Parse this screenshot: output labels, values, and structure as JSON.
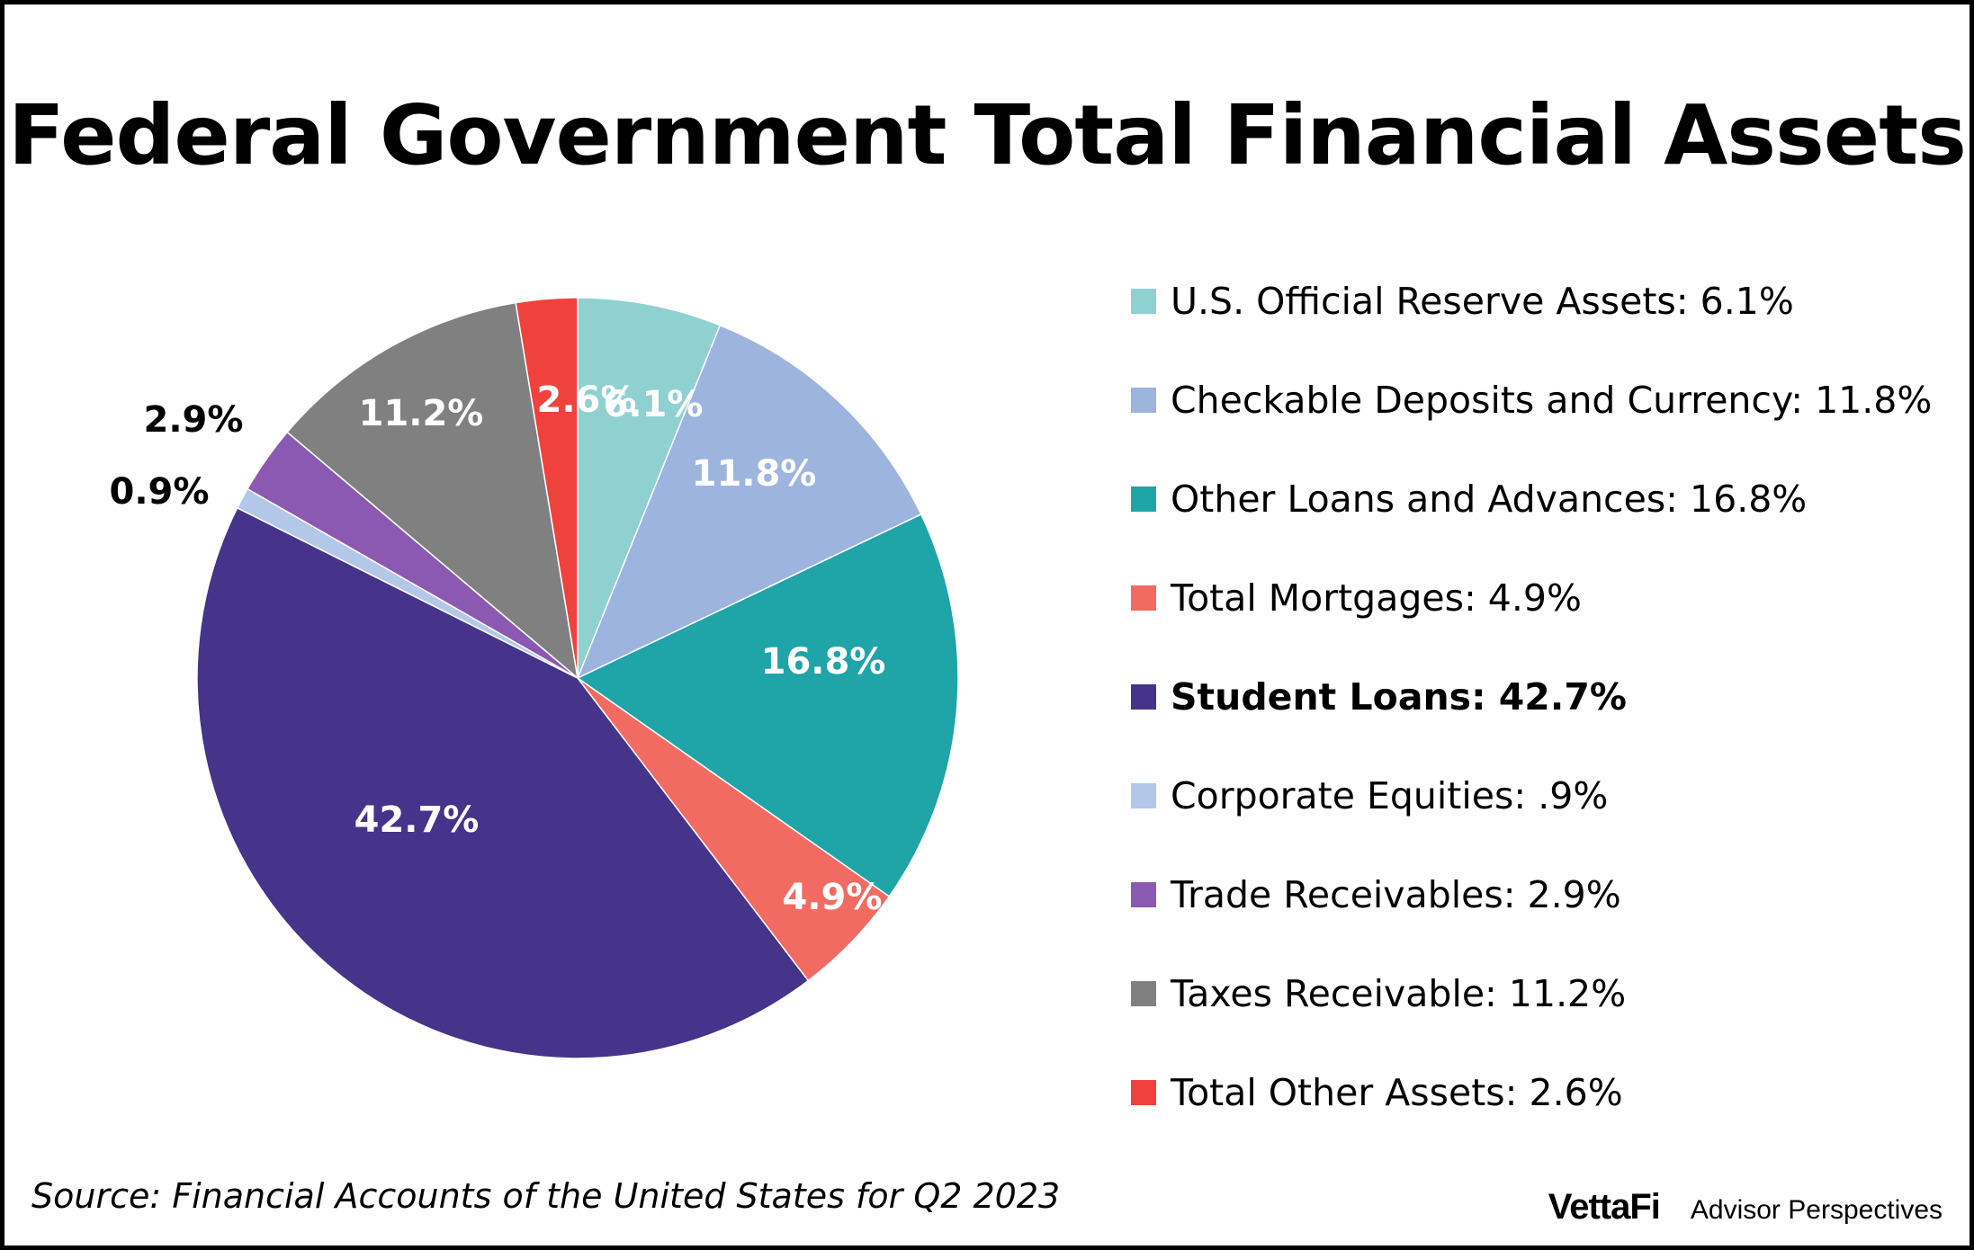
{
  "chart_data": {
    "type": "pie",
    "title": "Federal Government Total Financial Assets",
    "source": "Source: Financial Accounts of the United States for Q2 2023",
    "start_angle": "12 o'clock",
    "direction": "clockwise",
    "legend_position": "right",
    "slices": [
      {
        "name": "U.S. Official Reserve Assets",
        "value": 6.1,
        "label": "6.1%",
        "legend": "U.S. Official Reserve Assets: 6.1%",
        "color": "#8fd1d1"
      },
      {
        "name": "Checkable Deposits and Currency",
        "value": 11.8,
        "label": "11.8%",
        "legend": "Checkable Deposits and Currency: 11.8%",
        "color": "#9db5de"
      },
      {
        "name": "Other Loans and Advances",
        "value": 16.8,
        "label": "16.8%",
        "legend": "Other Loans and Advances: 16.8%",
        "color": "#1fa4a8"
      },
      {
        "name": "Total Mortgages",
        "value": 4.9,
        "label": "4.9%",
        "legend": "Total Mortgages: 4.9%",
        "color": "#f16b63"
      },
      {
        "name": "Student Loans",
        "value": 42.7,
        "label": "42.7%",
        "legend": "Student Loans: 42.7%",
        "color": "#46338a",
        "bold": true
      },
      {
        "name": "Corporate Equities",
        "value": 0.9,
        "label": "0.9%",
        "legend": "Corporate Equities: .9%",
        "color": "#b3c8e8"
      },
      {
        "name": "Trade Receivables",
        "value": 2.9,
        "label": "2.9%",
        "legend": "Trade Receivables: 2.9%",
        "color": "#8b59b1"
      },
      {
        "name": "Taxes Receivable",
        "value": 11.2,
        "label": "11.2%",
        "legend": "Taxes Receivable: 11.2%",
        "color": "#808080"
      },
      {
        "name": "Total Other Assets",
        "value": 2.6,
        "label": "2.6%",
        "legend": "Total Other Assets: 2.6%",
        "color": "#ef423c"
      }
    ]
  },
  "logo": {
    "brand": "VettaFi",
    "name": "Advisor Perspectives"
  }
}
